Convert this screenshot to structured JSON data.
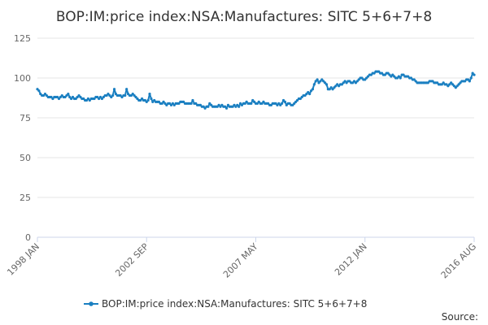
{
  "chart_data": {
    "type": "line",
    "title": "BOP:IM:price index:NSA:Manufactures: SITC 5+6+7+8",
    "ylim": [
      0,
      125
    ],
    "yticks": [
      "0",
      "25",
      "50",
      "75",
      "100",
      "125"
    ],
    "xticks": [
      "1998 JAN",
      "2002 SEP",
      "2007 MAY",
      "2012 JAN",
      "2016 AUG"
    ],
    "x_start": "1998 JAN",
    "x_end": "2016 AUG",
    "grid": true,
    "legend_position": "bottom",
    "source_label": "Source:",
    "colors": {
      "series": "#1a7fc1"
    },
    "series": [
      {
        "name": "BOP:IM:price index:NSA:Manufactures: SITC 5+6+7+8",
        "values": [
          93,
          92,
          90,
          89,
          89,
          90,
          89,
          88,
          88,
          88,
          87,
          88,
          88,
          88,
          87,
          88,
          89,
          88,
          88,
          89,
          90,
          88,
          87,
          88,
          87,
          87,
          88,
          89,
          88,
          87,
          87,
          86,
          86,
          87,
          86,
          87,
          87,
          87,
          88,
          88,
          87,
          88,
          87,
          88,
          89,
          89,
          90,
          89,
          88,
          89,
          93,
          90,
          89,
          89,
          89,
          88,
          89,
          89,
          93,
          90,
          89,
          89,
          90,
          89,
          88,
          87,
          86,
          86,
          87,
          86,
          86,
          85,
          86,
          90,
          87,
          85,
          86,
          85,
          85,
          85,
          84,
          84,
          85,
          84,
          83,
          84,
          84,
          83,
          84,
          83,
          84,
          84,
          84,
          85,
          85,
          85,
          84,
          84,
          84,
          84,
          84,
          86,
          84,
          84,
          83,
          83,
          83,
          82,
          82,
          81,
          82,
          82,
          84,
          83,
          82,
          82,
          82,
          82,
          83,
          82,
          83,
          82,
          82,
          81,
          83,
          82,
          82,
          82,
          83,
          82,
          83,
          82,
          84,
          83,
          84,
          84,
          85,
          84,
          84,
          84,
          86,
          85,
          84,
          84,
          85,
          84,
          84,
          85,
          84,
          84,
          84,
          83,
          83,
          84,
          84,
          84,
          83,
          84,
          83,
          84,
          86,
          85,
          83,
          84,
          84,
          83,
          83,
          84,
          85,
          86,
          87,
          87,
          88,
          89,
          89,
          90,
          91,
          90,
          92,
          93,
          96,
          98,
          99,
          97,
          98,
          99,
          98,
          97,
          96,
          93,
          93,
          94,
          93,
          94,
          95,
          96,
          95,
          96,
          96,
          97,
          98,
          97,
          98,
          98,
          97,
          97,
          98,
          97,
          98,
          99,
          100,
          100,
          99,
          99,
          100,
          101,
          102,
          102,
          103,
          103,
          104,
          104,
          104,
          103,
          103,
          102,
          102,
          103,
          103,
          102,
          101,
          102,
          101,
          100,
          100,
          101,
          100,
          102,
          102,
          101,
          101,
          101,
          100,
          100,
          99,
          99,
          98,
          97,
          97,
          97,
          97,
          97,
          97,
          97,
          97,
          98,
          98,
          98,
          97,
          97,
          97,
          96,
          96,
          96,
          97,
          96,
          96,
          95,
          96,
          97,
          96,
          95,
          94,
          95,
          96,
          97,
          98,
          98,
          98,
          99,
          99,
          98,
          100,
          103,
          102
        ]
      }
    ]
  }
}
